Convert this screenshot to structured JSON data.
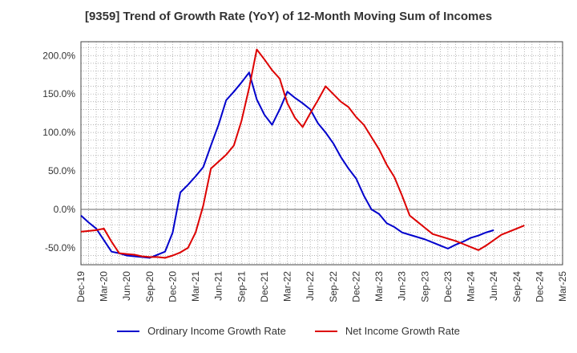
{
  "chart_data": {
    "type": "line",
    "title": "[9359]  Trend of Growth Rate (YoY) of 12-Month Moving Sum of Incomes",
    "ylim": [
      -72,
      218
    ],
    "y_ticks": [
      200,
      150,
      100,
      50,
      0,
      -50
    ],
    "y_tick_labels": [
      "200.0%",
      "150.0%",
      "100.0%",
      "50.0%",
      "0.0%",
      "-50.0%"
    ],
    "x_tick_labels": [
      "Dec-19",
      "Mar-20",
      "Jun-20",
      "Sep-20",
      "Dec-20",
      "Mar-21",
      "Jun-21",
      "Sep-21",
      "Dec-21",
      "Mar-22",
      "Jun-22",
      "Sep-22",
      "Dec-22",
      "Mar-23",
      "Jun-23",
      "Sep-23",
      "Dec-23",
      "Mar-24",
      "Jun-24",
      "Sep-24",
      "Dec-24",
      "Mar-25"
    ],
    "grid": true,
    "legend_position": "bottom",
    "series": [
      {
        "name": "Ordinary Income Growth Rate",
        "color": "#0000cc",
        "values": [
          -8,
          -17,
          -25,
          -40,
          -55,
          -57,
          -60,
          -61,
          -62,
          -63,
          -59,
          -55,
          -30,
          22,
          32,
          43,
          55,
          83,
          110,
          142,
          153,
          165,
          178,
          143,
          123,
          110,
          130,
          153,
          145,
          138,
          130,
          112,
          100,
          86,
          68,
          53,
          40,
          18,
          0,
          -6,
          -18,
          -23,
          -30,
          -33,
          -36,
          -39,
          -43,
          -47,
          -51,
          -46,
          -42,
          -37,
          -34,
          -30,
          -27
        ]
      },
      {
        "name": "Net Income Growth Rate",
        "color": "#dd0000",
        "values": [
          -29,
          -28,
          -27,
          -25,
          -42,
          -57,
          -58,
          -59,
          -61,
          -62,
          -62,
          -63,
          -60,
          -56,
          -50,
          -30,
          5,
          53,
          62,
          71,
          83,
          115,
          158,
          208,
          195,
          181,
          170,
          138,
          119,
          107,
          125,
          142,
          160,
          150,
          140,
          133,
          120,
          110,
          94,
          78,
          58,
          42,
          18,
          -8,
          -16,
          -24,
          -32,
          -35,
          -38,
          -41,
          -45,
          -49,
          -53,
          -47,
          -40,
          -33,
          -29,
          -25,
          -21
        ]
      }
    ]
  }
}
